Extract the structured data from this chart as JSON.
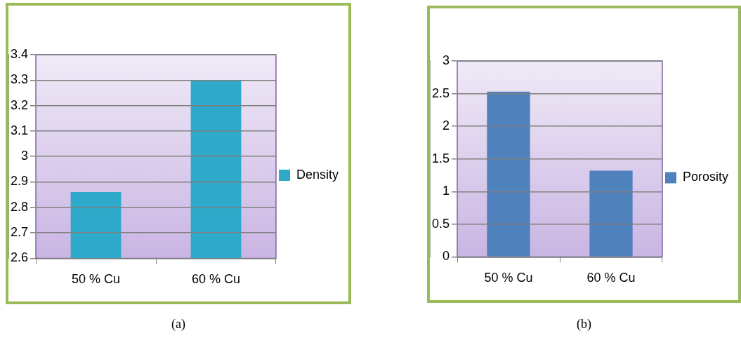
{
  "chart_data": [
    {
      "type": "bar",
      "categories": [
        "50 % Cu",
        "60 % Cu"
      ],
      "series": [
        {
          "name": "Density",
          "color": "#2fa9c9",
          "values": [
            2.86,
            3.3
          ]
        }
      ],
      "ylim": [
        2.6,
        3.4
      ],
      "yticks": [
        2.6,
        2.7,
        2.8,
        2.9,
        3,
        3.1,
        3.2,
        3.3,
        3.4
      ],
      "grid": "y",
      "legend": "right",
      "annotations": [
        "(a)"
      ]
    },
    {
      "type": "bar",
      "categories": [
        "50 % Cu",
        "60 % Cu"
      ],
      "series": [
        {
          "name": "Porosity",
          "color": "#4f81bd",
          "values": [
            2.53,
            1.32
          ]
        }
      ],
      "ylim": [
        0,
        3
      ],
      "yticks": [
        0,
        0.5,
        1,
        1.5,
        2,
        2.5,
        3
      ],
      "grid": "y",
      "legend": "right",
      "annotations": [
        "(b)"
      ]
    }
  ]
}
